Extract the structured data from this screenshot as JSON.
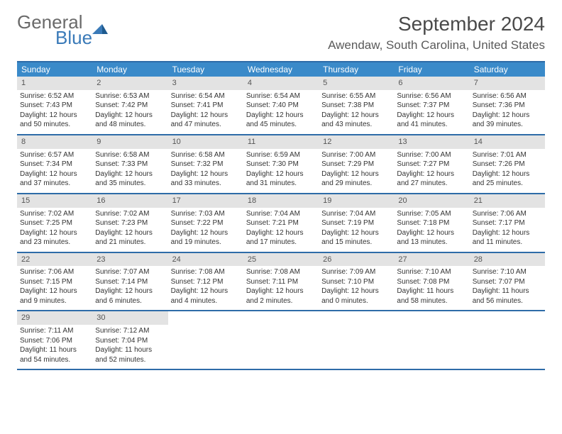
{
  "logo": {
    "text1": "General",
    "text2": "Blue"
  },
  "title": "September 2024",
  "location": "Awendaw, South Carolina, United States",
  "colors": {
    "header_bg": "#3a8ac9",
    "border": "#2e6ca8",
    "daynum_bg": "#e3e3e3",
    "text": "#333333",
    "title": "#4a4a4a",
    "logo_gray": "#6a6a6a",
    "logo_blue": "#3a7ab8"
  },
  "weekdays": [
    "Sunday",
    "Monday",
    "Tuesday",
    "Wednesday",
    "Thursday",
    "Friday",
    "Saturday"
  ],
  "weeks": [
    [
      {
        "n": "1",
        "sr": "6:52 AM",
        "ss": "7:43 PM",
        "dl": "12 hours and 50 minutes."
      },
      {
        "n": "2",
        "sr": "6:53 AM",
        "ss": "7:42 PM",
        "dl": "12 hours and 48 minutes."
      },
      {
        "n": "3",
        "sr": "6:54 AM",
        "ss": "7:41 PM",
        "dl": "12 hours and 47 minutes."
      },
      {
        "n": "4",
        "sr": "6:54 AM",
        "ss": "7:40 PM",
        "dl": "12 hours and 45 minutes."
      },
      {
        "n": "5",
        "sr": "6:55 AM",
        "ss": "7:38 PM",
        "dl": "12 hours and 43 minutes."
      },
      {
        "n": "6",
        "sr": "6:56 AM",
        "ss": "7:37 PM",
        "dl": "12 hours and 41 minutes."
      },
      {
        "n": "7",
        "sr": "6:56 AM",
        "ss": "7:36 PM",
        "dl": "12 hours and 39 minutes."
      }
    ],
    [
      {
        "n": "8",
        "sr": "6:57 AM",
        "ss": "7:34 PM",
        "dl": "12 hours and 37 minutes."
      },
      {
        "n": "9",
        "sr": "6:58 AM",
        "ss": "7:33 PM",
        "dl": "12 hours and 35 minutes."
      },
      {
        "n": "10",
        "sr": "6:58 AM",
        "ss": "7:32 PM",
        "dl": "12 hours and 33 minutes."
      },
      {
        "n": "11",
        "sr": "6:59 AM",
        "ss": "7:30 PM",
        "dl": "12 hours and 31 minutes."
      },
      {
        "n": "12",
        "sr": "7:00 AM",
        "ss": "7:29 PM",
        "dl": "12 hours and 29 minutes."
      },
      {
        "n": "13",
        "sr": "7:00 AM",
        "ss": "7:27 PM",
        "dl": "12 hours and 27 minutes."
      },
      {
        "n": "14",
        "sr": "7:01 AM",
        "ss": "7:26 PM",
        "dl": "12 hours and 25 minutes."
      }
    ],
    [
      {
        "n": "15",
        "sr": "7:02 AM",
        "ss": "7:25 PM",
        "dl": "12 hours and 23 minutes."
      },
      {
        "n": "16",
        "sr": "7:02 AM",
        "ss": "7:23 PM",
        "dl": "12 hours and 21 minutes."
      },
      {
        "n": "17",
        "sr": "7:03 AM",
        "ss": "7:22 PM",
        "dl": "12 hours and 19 minutes."
      },
      {
        "n": "18",
        "sr": "7:04 AM",
        "ss": "7:21 PM",
        "dl": "12 hours and 17 minutes."
      },
      {
        "n": "19",
        "sr": "7:04 AM",
        "ss": "7:19 PM",
        "dl": "12 hours and 15 minutes."
      },
      {
        "n": "20",
        "sr": "7:05 AM",
        "ss": "7:18 PM",
        "dl": "12 hours and 13 minutes."
      },
      {
        "n": "21",
        "sr": "7:06 AM",
        "ss": "7:17 PM",
        "dl": "12 hours and 11 minutes."
      }
    ],
    [
      {
        "n": "22",
        "sr": "7:06 AM",
        "ss": "7:15 PM",
        "dl": "12 hours and 9 minutes."
      },
      {
        "n": "23",
        "sr": "7:07 AM",
        "ss": "7:14 PM",
        "dl": "12 hours and 6 minutes."
      },
      {
        "n": "24",
        "sr": "7:08 AM",
        "ss": "7:12 PM",
        "dl": "12 hours and 4 minutes."
      },
      {
        "n": "25",
        "sr": "7:08 AM",
        "ss": "7:11 PM",
        "dl": "12 hours and 2 minutes."
      },
      {
        "n": "26",
        "sr": "7:09 AM",
        "ss": "7:10 PM",
        "dl": "12 hours and 0 minutes."
      },
      {
        "n": "27",
        "sr": "7:10 AM",
        "ss": "7:08 PM",
        "dl": "11 hours and 58 minutes."
      },
      {
        "n": "28",
        "sr": "7:10 AM",
        "ss": "7:07 PM",
        "dl": "11 hours and 56 minutes."
      }
    ],
    [
      {
        "n": "29",
        "sr": "7:11 AM",
        "ss": "7:06 PM",
        "dl": "11 hours and 54 minutes."
      },
      {
        "n": "30",
        "sr": "7:12 AM",
        "ss": "7:04 PM",
        "dl": "11 hours and 52 minutes."
      },
      {
        "empty": true
      },
      {
        "empty": true
      },
      {
        "empty": true
      },
      {
        "empty": true
      },
      {
        "empty": true
      }
    ]
  ],
  "labels": {
    "sunrise": "Sunrise:",
    "sunset": "Sunset:",
    "daylight": "Daylight:"
  }
}
